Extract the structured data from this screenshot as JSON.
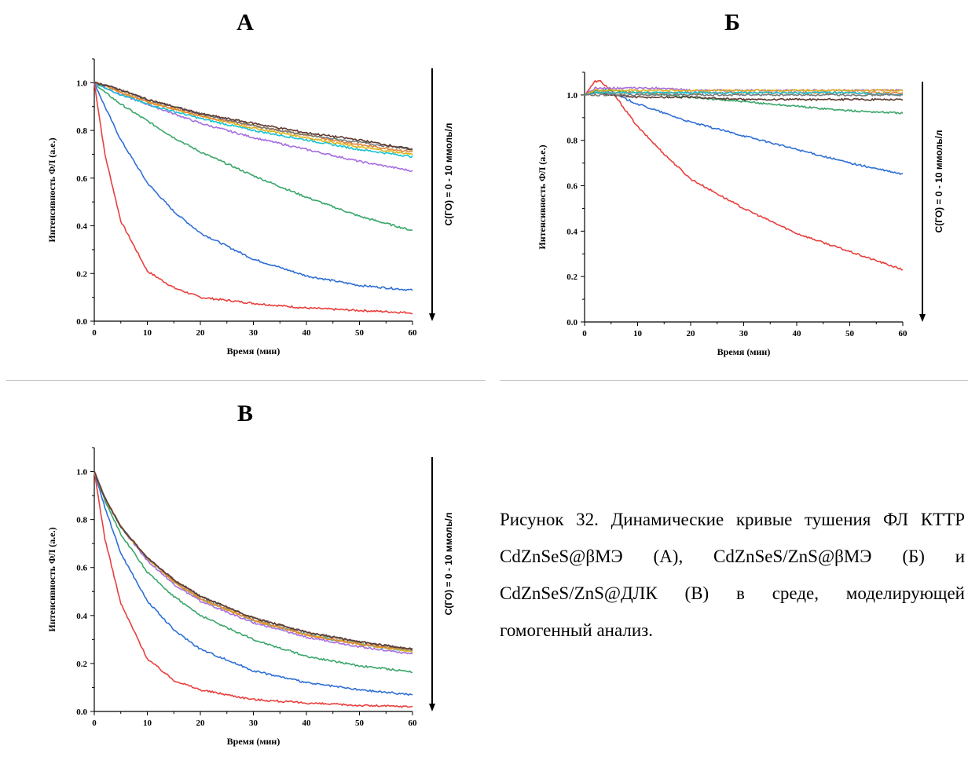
{
  "figure": {
    "caption": "Рисунок 32. Динамические кривые тушения ФЛ КТТР CdZnSeS@βМЭ (А), CdZnSeS/ZnS@βМЭ (Б) и CdZnSeS/ZnS@ДЛК (В) в среде, моделирующей гомогенный анализ."
  },
  "colors": {
    "red": "#e8403e",
    "blue": "#2f6fd6",
    "green": "#3aa66a",
    "purple": "#a66fe0",
    "cyan": "#17c2d2",
    "yellow": "#e0b21a",
    "orange": "#e3873a",
    "gray": "#7b7b7b",
    "brown": "#5e3a32"
  },
  "chart_data": [
    {
      "panel_label": "А",
      "type": "line",
      "xlabel": "Время (мин)",
      "ylabel": "Интенсивность ФЛ (а.е.)",
      "xlim": [
        0,
        60
      ],
      "ylim": [
        0,
        1.1
      ],
      "xticks": [
        "0",
        "10",
        "20",
        "30",
        "40",
        "50",
        "60"
      ],
      "yticks": [
        "0.0",
        "0.2",
        "0.4",
        "0.6",
        "0.8",
        "1.0"
      ],
      "annotation": "C(ГО) = 0 - 10 ммоль/л",
      "x": [
        0,
        2,
        5,
        10,
        15,
        20,
        30,
        40,
        50,
        60
      ],
      "series": [
        {
          "color": "red",
          "values": [
            1.0,
            0.7,
            0.42,
            0.21,
            0.14,
            0.1,
            0.075,
            0.055,
            0.045,
            0.035
          ]
        },
        {
          "color": "blue",
          "values": [
            1.0,
            0.9,
            0.76,
            0.58,
            0.46,
            0.37,
            0.26,
            0.19,
            0.15,
            0.13
          ]
        },
        {
          "color": "green",
          "values": [
            1.0,
            0.96,
            0.91,
            0.84,
            0.77,
            0.71,
            0.61,
            0.52,
            0.44,
            0.38
          ]
        },
        {
          "color": "purple",
          "values": [
            1.0,
            0.98,
            0.95,
            0.91,
            0.87,
            0.83,
            0.77,
            0.72,
            0.67,
            0.63
          ]
        },
        {
          "color": "cyan",
          "values": [
            1.0,
            0.98,
            0.95,
            0.91,
            0.88,
            0.85,
            0.8,
            0.76,
            0.72,
            0.69
          ]
        },
        {
          "color": "yellow",
          "values": [
            1.0,
            0.99,
            0.96,
            0.92,
            0.89,
            0.86,
            0.81,
            0.77,
            0.73,
            0.7
          ]
        },
        {
          "color": "orange",
          "values": [
            1.0,
            0.99,
            0.96,
            0.92,
            0.89,
            0.86,
            0.82,
            0.78,
            0.74,
            0.71
          ]
        },
        {
          "color": "gray",
          "values": [
            1.0,
            0.99,
            0.97,
            0.93,
            0.9,
            0.87,
            0.82,
            0.78,
            0.75,
            0.72
          ]
        },
        {
          "color": "brown",
          "values": [
            1.0,
            0.99,
            0.97,
            0.93,
            0.9,
            0.87,
            0.83,
            0.79,
            0.76,
            0.72
          ]
        }
      ]
    },
    {
      "panel_label": "Б",
      "type": "line",
      "xlabel": "Время (мин)",
      "ylabel": "Интенсивность ФЛ (а.е.)",
      "xlim": [
        0,
        60
      ],
      "ylim": [
        0,
        1.1
      ],
      "xticks": [
        "0",
        "10",
        "20",
        "30",
        "40",
        "50",
        "60"
      ],
      "yticks": [
        "0.0",
        "0.2",
        "0.4",
        "0.6",
        "0.8",
        "1.0"
      ],
      "annotation": "C(ГО) = 0 - 10 ммоль/л",
      "x": [
        0,
        2,
        3,
        5,
        10,
        15,
        20,
        30,
        40,
        50,
        60
      ],
      "series": [
        {
          "color": "red",
          "values": [
            1.0,
            1.06,
            1.06,
            1.02,
            0.86,
            0.74,
            0.63,
            0.5,
            0.39,
            0.31,
            0.23
          ]
        },
        {
          "color": "blue",
          "values": [
            1.0,
            1.02,
            1.02,
            1.01,
            0.96,
            0.92,
            0.88,
            0.82,
            0.76,
            0.7,
            0.65
          ]
        },
        {
          "color": "green",
          "values": [
            1.0,
            1.02,
            1.02,
            1.02,
            1.01,
            1.0,
            0.99,
            0.97,
            0.95,
            0.93,
            0.92
          ]
        },
        {
          "color": "brown",
          "values": [
            1.0,
            1.01,
            1.01,
            1.0,
            0.99,
            0.99,
            0.99,
            0.98,
            0.98,
            0.98,
            0.98
          ]
        },
        {
          "color": "purple",
          "values": [
            1.0,
            1.03,
            1.03,
            1.03,
            1.03,
            1.03,
            1.02,
            1.02,
            1.02,
            1.02,
            1.02
          ]
        },
        {
          "color": "yellow",
          "values": [
            1.0,
            1.02,
            1.02,
            1.02,
            1.02,
            1.02,
            1.02,
            1.02,
            1.02,
            1.02,
            1.02
          ]
        },
        {
          "color": "orange",
          "values": [
            1.0,
            1.01,
            1.01,
            1.01,
            1.01,
            1.01,
            1.01,
            1.01,
            1.01,
            1.01,
            1.01
          ]
        },
        {
          "color": "cyan",
          "values": [
            1.0,
            1.01,
            1.01,
            1.01,
            1.01,
            1.01,
            1.01,
            1.01,
            1.01,
            1.01,
            1.0
          ]
        },
        {
          "color": "gray",
          "values": [
            1.0,
            1.0,
            1.0,
            1.0,
            1.0,
            1.0,
            1.0,
            1.0,
            1.0,
            1.0,
            1.0
          ]
        }
      ]
    },
    {
      "panel_label": "В",
      "type": "line",
      "xlabel": "Время (мин)",
      "ylabel": "Интенсивность ФЛ (а.е.)",
      "xlim": [
        0,
        60
      ],
      "ylim": [
        0,
        1.1
      ],
      "xticks": [
        "0",
        "10",
        "20",
        "30",
        "40",
        "50",
        "60"
      ],
      "yticks": [
        "0.0",
        "0.2",
        "0.4",
        "0.6",
        "0.8",
        "1.0"
      ],
      "annotation": "C(ГО) = 0 - 10 ммоль/л",
      "x": [
        0,
        2,
        5,
        10,
        15,
        20,
        30,
        40,
        50,
        60
      ],
      "series": [
        {
          "color": "red",
          "values": [
            1.0,
            0.72,
            0.45,
            0.22,
            0.13,
            0.09,
            0.05,
            0.035,
            0.025,
            0.02
          ]
        },
        {
          "color": "blue",
          "values": [
            1.0,
            0.85,
            0.66,
            0.46,
            0.34,
            0.26,
            0.17,
            0.12,
            0.09,
            0.07
          ]
        },
        {
          "color": "green",
          "values": [
            1.0,
            0.88,
            0.74,
            0.58,
            0.48,
            0.4,
            0.3,
            0.23,
            0.19,
            0.165
          ]
        },
        {
          "color": "purple",
          "values": [
            1.0,
            0.89,
            0.77,
            0.63,
            0.53,
            0.46,
            0.37,
            0.31,
            0.27,
            0.24
          ]
        },
        {
          "color": "cyan",
          "values": [
            1.0,
            0.89,
            0.77,
            0.64,
            0.54,
            0.47,
            0.38,
            0.32,
            0.28,
            0.25
          ]
        },
        {
          "color": "yellow",
          "values": [
            1.0,
            0.89,
            0.77,
            0.64,
            0.54,
            0.47,
            0.38,
            0.32,
            0.28,
            0.25
          ]
        },
        {
          "color": "orange",
          "values": [
            1.0,
            0.89,
            0.77,
            0.64,
            0.54,
            0.47,
            0.38,
            0.32,
            0.28,
            0.255
          ]
        },
        {
          "color": "gray",
          "values": [
            1.0,
            0.89,
            0.77,
            0.64,
            0.55,
            0.48,
            0.39,
            0.33,
            0.29,
            0.26
          ]
        },
        {
          "color": "brown",
          "values": [
            1.0,
            0.89,
            0.77,
            0.64,
            0.55,
            0.48,
            0.39,
            0.33,
            0.29,
            0.26
          ]
        }
      ]
    }
  ]
}
